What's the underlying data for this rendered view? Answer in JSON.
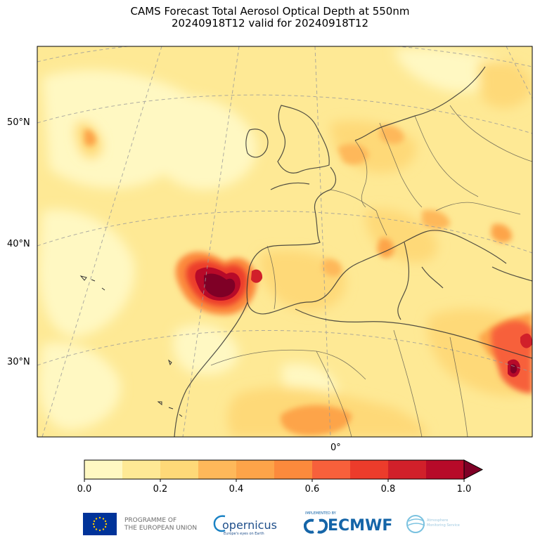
{
  "title": {
    "line1": "CAMS Forecast Total Aerosol Optical Depth at 550nm",
    "line2": "20240918T12 valid for 20240918T12"
  },
  "map": {
    "lat_labels": [
      "50°N",
      "40°N",
      "30°N"
    ],
    "lon_labels": [
      "0°"
    ],
    "grid": "dashed",
    "colormap": [
      "#fff8c2",
      "#fee995",
      "#fed978",
      "#feb85a",
      "#fda449",
      "#fc8a3c",
      "#f7603b",
      "#ec3c2b",
      "#d1202a",
      "#b70a29",
      "#7f0026"
    ]
  },
  "colorbar": {
    "ticks": [
      "0.0",
      "0.2",
      "0.4",
      "0.6",
      "0.8",
      "1.0"
    ],
    "extend": "max"
  },
  "footer": {
    "eu_text_1": "PROGRAMME OF",
    "eu_text_2": "THE EUROPEAN UNION",
    "copernicus_text": "opernicus",
    "copernicus_sub": "Europe's eyes on Earth",
    "ecmwf_small": "IMPLEMENTED BY",
    "ecmwf_text": "ECMWF",
    "cams_text_1": "Atmosphere",
    "cams_text_2": "Monitoring Service"
  }
}
